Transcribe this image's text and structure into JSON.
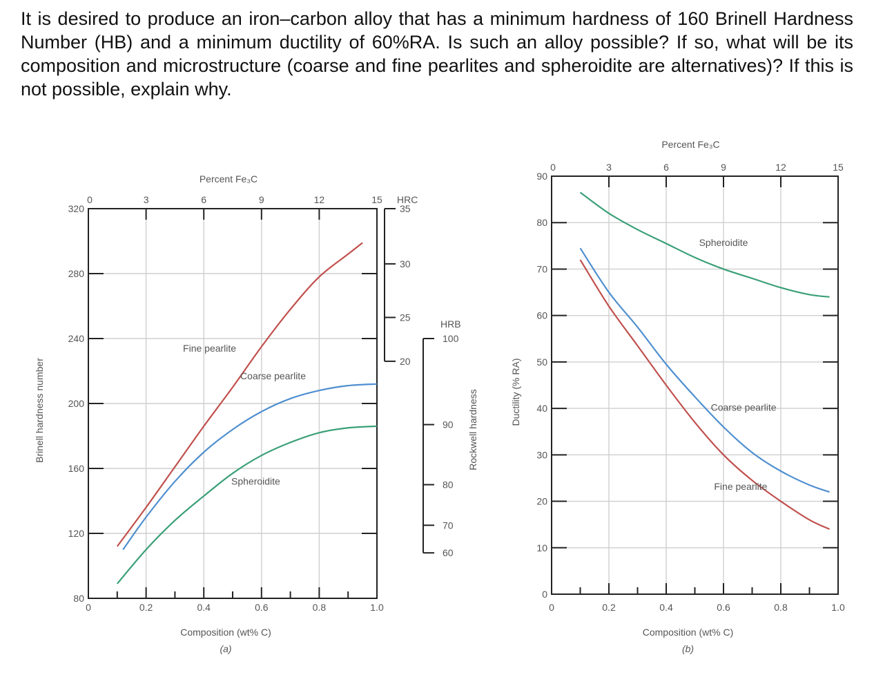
{
  "question": "It is desired to produce an iron–carbon alloy that has a minimum hardness of 160 Brinell Hardness Number (HB) and a minimum ductility of 60%RA. Is such an alloy possible? If so, what will be its composition and microstructure (coarse and fine pearlites and spheroidite are alternatives)? If this is not possible, explain why.",
  "colors": {
    "fine": "#c0504d",
    "coarse": "#4f8fcf",
    "spheroidite": "#3a9f77"
  },
  "chart_data": [
    {
      "type": "line",
      "panel_label": "(a)",
      "xlabel": "Composition (wt% C)",
      "ylabel": "Brinell hardness number",
      "top_axis_label": "Percent Fe₃C",
      "xlim": [
        0,
        1.0
      ],
      "ylim": [
        80,
        320
      ],
      "x_ticks": [
        "0",
        "0.2",
        "0.4",
        "0.6",
        "0.8",
        "1.0"
      ],
      "y_ticks": [
        "80",
        "120",
        "160",
        "200",
        "240",
        "280",
        "320"
      ],
      "top_ticks": [
        "0",
        "3",
        "6",
        "9",
        "12",
        "15"
      ],
      "hrc_label": "HRC",
      "hrc_ticks": [
        {
          "label": "35",
          "hb": 320
        },
        {
          "label": "30",
          "hb": 286
        },
        {
          "label": "25",
          "hb": 253
        },
        {
          "label": "20",
          "hb": 226
        }
      ],
      "hrb_label": "HRB",
      "hrb_ticks": [
        {
          "label": "100",
          "hb": 240
        },
        {
          "label": "90",
          "hb": 187
        },
        {
          "label": "80",
          "hb": 150
        },
        {
          "label": "70",
          "hb": 125
        },
        {
          "label": "60",
          "hb": 108
        }
      ],
      "rockwell_label": "Rockwell hardness",
      "series": [
        {
          "name": "Fine pearlite",
          "key": "fine",
          "label_at": [
            0.42,
            232
          ],
          "x": [
            0.1,
            0.2,
            0.3,
            0.4,
            0.5,
            0.6,
            0.7,
            0.8,
            0.9,
            0.95
          ],
          "y": [
            112,
            136,
            161,
            186,
            210,
            235,
            258,
            278,
            292,
            299
          ]
        },
        {
          "name": "Coarse pearlite",
          "key": "coarse",
          "label_at": [
            0.64,
            215
          ],
          "x": [
            0.12,
            0.2,
            0.3,
            0.4,
            0.5,
            0.6,
            0.7,
            0.8,
            0.9,
            1.0
          ],
          "y": [
            110,
            130,
            152,
            170,
            184,
            195,
            203,
            208,
            211,
            212
          ]
        },
        {
          "name": "Spheroidite",
          "key": "spheroidite",
          "label_at": [
            0.58,
            150
          ],
          "x": [
            0.1,
            0.2,
            0.3,
            0.4,
            0.5,
            0.6,
            0.7,
            0.8,
            0.9,
            1.0
          ],
          "y": [
            89,
            110,
            128,
            143,
            157,
            168,
            176,
            182,
            185,
            186
          ]
        }
      ]
    },
    {
      "type": "line",
      "panel_label": "(b)",
      "xlabel": "Composition (wt% C)",
      "ylabel": "Ductility (% RA)",
      "top_axis_label": "Percent Fe₃C",
      "xlim": [
        0,
        1.0
      ],
      "ylim": [
        0,
        90
      ],
      "x_ticks": [
        "0",
        "0.2",
        "0.4",
        "0.6",
        "0.8",
        "1.0"
      ],
      "y_ticks": [
        "0",
        "10",
        "20",
        "30",
        "40",
        "50",
        "60",
        "70",
        "80",
        "90"
      ],
      "top_ticks": [
        "0",
        "3",
        "6",
        "9",
        "12",
        "15"
      ],
      "series": [
        {
          "name": "Spheroidite",
          "key": "spheroidite",
          "label_at": [
            0.6,
            75
          ],
          "x": [
            0.1,
            0.2,
            0.3,
            0.4,
            0.5,
            0.6,
            0.7,
            0.8,
            0.9,
            0.97
          ],
          "y": [
            86.5,
            82,
            78.5,
            75.5,
            72.5,
            70,
            68,
            66,
            64.5,
            64
          ]
        },
        {
          "name": "Coarse pearlite",
          "key": "coarse",
          "label_at": [
            0.67,
            39.5
          ],
          "x": [
            0.1,
            0.2,
            0.3,
            0.4,
            0.5,
            0.6,
            0.7,
            0.8,
            0.9,
            0.97
          ],
          "y": [
            74.5,
            65,
            57.5,
            49.5,
            42.5,
            36,
            30.5,
            26.5,
            23.5,
            22
          ]
        },
        {
          "name": "Fine pearlite",
          "key": "fine",
          "label_at": [
            0.66,
            22.5
          ],
          "x": [
            0.1,
            0.2,
            0.3,
            0.4,
            0.5,
            0.6,
            0.7,
            0.8,
            0.9,
            0.97
          ],
          "y": [
            72,
            62,
            53.5,
            45,
            37,
            30,
            24.5,
            20,
            16,
            14
          ]
        }
      ]
    }
  ]
}
